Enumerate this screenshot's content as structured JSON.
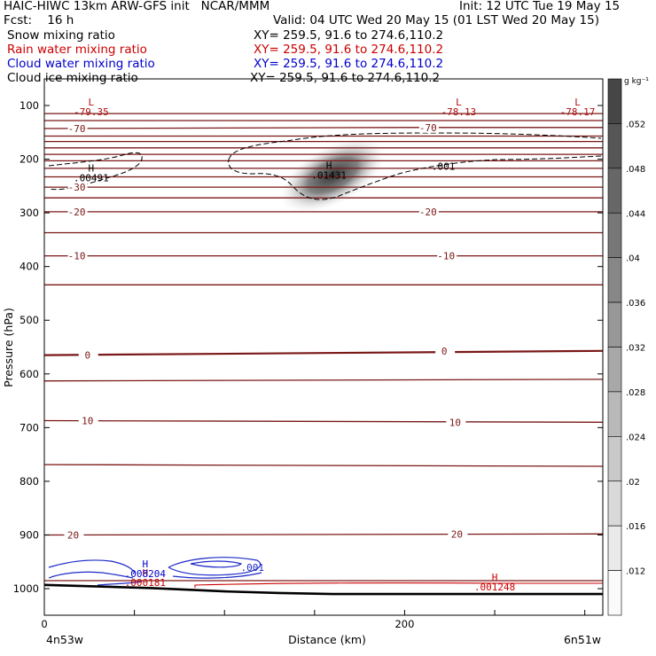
{
  "header": {
    "line1_left": "HAIC-HIWC 13km ARW-GFS init   NCAR/MMM",
    "line1_right": "Init: 12 UTC Tue 19 May 15",
    "line2_left": "Fcst:    16 h",
    "line2_right": "Valid: 04 UTC Wed 20 May 15 (01 LST Wed 20 May 15)",
    "fields": [
      {
        "name": "Snow mixing ratio",
        "xy": "XY= 259.5, 91.6 to 274.6,110.2",
        "color": "#000000"
      },
      {
        "name": "Rain water mixing ratio",
        "xy": "XY= 259.5, 91.6 to 274.6,110.2",
        "color": "#cc0000"
      },
      {
        "name": "Cloud water mixing ratio",
        "xy": "XY= 259.5, 91.6 to 274.6,110.2",
        "color": "#0000cc"
      },
      {
        "name": "Cloud ice mixing ratio",
        "xy": "XY= 259.5, 91.6 to 274.6,110.2",
        "color": "#000000"
      }
    ]
  },
  "chart_data": {
    "type": "cross-section contour",
    "ylabel": "Pressure (hPa)",
    "xlabel": "Distance (km)",
    "x_left_label": "4n53w",
    "x_right_label": "6n51w",
    "xlim": [
      0,
      310
    ],
    "x_ticks": [
      0,
      200
    ],
    "ylim": [
      1045,
      75
    ],
    "y_ticks": [
      100,
      200,
      300,
      400,
      500,
      600,
      700,
      800,
      900,
      1000
    ],
    "isotherms": [
      {
        "t": -79.35,
        "x": [
          0,
          310
        ],
        "p": [
          115,
          115
        ]
      },
      {
        "t": -75,
        "x": [
          0,
          310
        ],
        "p": [
          128,
          128
        ]
      },
      {
        "t": -70,
        "x": [
          0,
          200,
          310
        ],
        "p": [
          143,
          141,
          141
        ]
      },
      {
        "t": -65,
        "x": [
          0,
          310
        ],
        "p": [
          157,
          157
        ]
      },
      {
        "t": -60,
        "x": [
          0,
          310
        ],
        "p": [
          167,
          167
        ]
      },
      {
        "t": -55,
        "x": [
          0,
          310
        ],
        "p": [
          179,
          179
        ]
      },
      {
        "t": -50,
        "x": [
          0,
          310
        ],
        "p": [
          191,
          191
        ]
      },
      {
        "t": -45,
        "x": [
          0,
          310
        ],
        "p": [
          203,
          203
        ]
      },
      {
        "t": -40,
        "x": [
          0,
          310
        ],
        "p": [
          217,
          217
        ]
      },
      {
        "t": -35,
        "x": [
          0,
          310
        ],
        "p": [
          233,
          233
        ]
      },
      {
        "t": -30,
        "x": [
          0,
          310
        ],
        "p": [
          252,
          252
        ]
      },
      {
        "t": -25,
        "x": [
          0,
          310
        ],
        "p": [
          272,
          272
        ]
      },
      {
        "t": -20,
        "x": [
          0,
          310
        ],
        "p": [
          298,
          298
        ]
      },
      {
        "t": -15,
        "x": [
          0,
          310
        ],
        "p": [
          337,
          337
        ]
      },
      {
        "t": -10,
        "x": [
          0,
          310
        ],
        "p": [
          380,
          380
        ]
      },
      {
        "t": -5,
        "x": [
          0,
          310
        ],
        "p": [
          434,
          434
        ]
      },
      {
        "t": 0,
        "x": [
          0,
          310
        ],
        "p": [
          565,
          557
        ]
      },
      {
        "t": 5,
        "x": [
          0,
          310
        ],
        "p": [
          613,
          610
        ]
      },
      {
        "t": 10,
        "x": [
          0,
          310
        ],
        "p": [
          687,
          690
        ]
      },
      {
        "t": 15,
        "x": [
          0,
          310
        ],
        "p": [
          769,
          772
        ]
      },
      {
        "t": 20,
        "x": [
          0,
          310
        ],
        "p": [
          900,
          898
        ]
      },
      {
        "t": 25,
        "x": [
          0,
          310
        ],
        "p": [
          985,
          985
        ]
      }
    ],
    "contour_labels": [
      {
        "text": "-70",
        "x": 18,
        "p": 143
      },
      {
        "text": "-70",
        "x": 213,
        "p": 141
      },
      {
        "text": "-30",
        "x": 18,
        "p": 252
      },
      {
        "text": "-20",
        "x": 18,
        "p": 298
      },
      {
        "text": "-20",
        "x": 213,
        "p": 298
      },
      {
        "text": "-10",
        "x": 18,
        "p": 380
      },
      {
        "text": "-10",
        "x": 223,
        "p": 380
      },
      {
        "text": "0",
        "x": 24,
        "p": 565
      },
      {
        "text": "0",
        "x": 222,
        "p": 557
      },
      {
        "text": "10",
        "x": 24,
        "p": 687
      },
      {
        "text": "10",
        "x": 228,
        "p": 690
      },
      {
        "text": "20",
        "x": 16,
        "p": 900
      },
      {
        "text": "20",
        "x": 229,
        "p": 898
      }
    ],
    "extrema": [
      {
        "marker": "L",
        "value": "-79.35",
        "x": 26,
        "p": 100,
        "color": "#b01010"
      },
      {
        "marker": "L",
        "value": "-78.13",
        "x": 230,
        "p": 100,
        "color": "#b01010"
      },
      {
        "marker": "L",
        "value": "-78.17",
        "x": 296,
        "p": 100,
        "color": "#b01010"
      },
      {
        "marker": "H",
        "value": ".00491",
        "x": 26,
        "p": 223,
        "color": "#000000"
      },
      {
        "marker": "H",
        "value": ".01431",
        "x": 158,
        "p": 218,
        "color": "#000000"
      },
      {
        "marker": "H",
        "value": ".000181",
        "x": 56,
        "p": 977,
        "color": "#cc0000"
      },
      {
        "marker": "H",
        "value": ".001248",
        "x": 250,
        "p": 985,
        "color": "#cc0000"
      },
      {
        "marker": "H",
        "value": ".008204",
        "x": 56,
        "p": 960,
        "color": "#0000cc"
      }
    ],
    "snow_contour_labels": [
      {
        "text": ".001",
        "x": 215,
        "p": 213
      }
    ],
    "cloud_water_labels": [
      {
        "text": ".001",
        "x": 109,
        "p": 960
      }
    ],
    "shading_max": {
      "x": 160,
      "p": 230,
      "value": 0.05
    },
    "colorbar": {
      "unit": "g kg⁻¹",
      "min": 0.008,
      "max": 0.056,
      "labels": [
        ".052",
        ".048",
        ".044",
        ".04",
        ".036",
        ".032",
        ".028",
        ".024",
        ".02",
        ".016",
        ".012"
      ]
    },
    "terrain": {
      "x": [
        0,
        60,
        100,
        130,
        160,
        200,
        240,
        280,
        310
      ],
      "p": [
        993,
        999,
        1005,
        1008,
        1010,
        1010,
        1010,
        1010,
        1010
      ]
    }
  }
}
